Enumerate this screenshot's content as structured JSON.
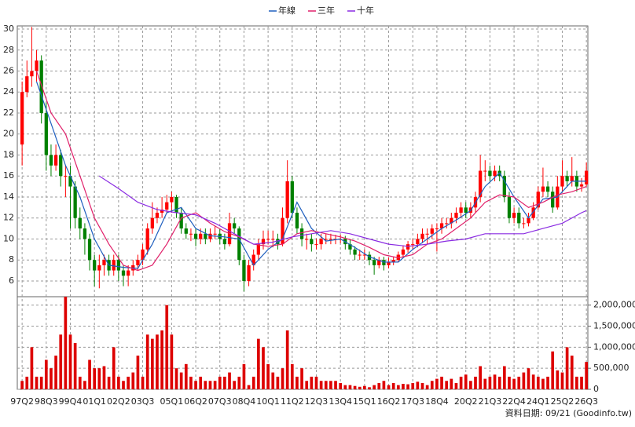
{
  "chart_data": [
    {
      "type": "candlestick",
      "xlim": [
        -1,
        117.3
      ],
      "xticks": [
        {
          "value": 0,
          "label": "97Q2"
        },
        {
          "value": 5,
          "label": "98Q3"
        },
        {
          "value": 10,
          "label": "99Q4"
        },
        {
          "value": 15,
          "label": "01Q1"
        },
        {
          "value": 20,
          "label": "02Q2"
        },
        {
          "value": 25,
          "label": "03Q3"
        },
        {
          "value": 31,
          "label": "05Q1"
        },
        {
          "value": 36,
          "label": "06Q2"
        },
        {
          "value": 41,
          "label": "07Q3"
        },
        {
          "value": 46,
          "label": "08Q4"
        },
        {
          "value": 51,
          "label": "10Q1"
        },
        {
          "value": 56,
          "label": "11Q2"
        },
        {
          "value": 61,
          "label": "12Q3"
        },
        {
          "value": 66,
          "label": "13Q4"
        },
        {
          "value": 71,
          "label": "15Q1"
        },
        {
          "value": 76,
          "label": "16Q2"
        },
        {
          "value": 81,
          "label": "17Q3"
        },
        {
          "value": 86,
          "label": "18Q4"
        },
        {
          "value": 92,
          "label": "20Q2"
        },
        {
          "value": 97,
          "label": "21Q3"
        },
        {
          "value": 102,
          "label": "22Q4"
        },
        {
          "value": 107,
          "label": "24Q1"
        },
        {
          "value": 112,
          "label": "25Q2"
        },
        {
          "value": 117,
          "label": "26Q3"
        }
      ],
      "ylim": [
        4.5,
        30.3
      ],
      "yticks": [
        6,
        8,
        10,
        12,
        14,
        16,
        18,
        20,
        22,
        24,
        26,
        28,
        30
      ],
      "grid": true,
      "up_color": "#ff0000",
      "down_color": "#008000",
      "open": [
        19,
        24,
        25.5,
        26,
        27,
        22,
        18,
        17,
        18,
        16,
        16,
        15,
        12,
        11,
        10,
        8,
        7,
        7.5,
        8,
        7,
        8,
        7,
        6.5,
        7,
        7.5,
        8,
        9,
        11,
        12,
        12.5,
        12.8,
        13.5,
        14,
        12.5,
        11,
        10.5,
        10.5,
        10,
        10.5,
        10,
        10.5,
        10.5,
        10,
        9.5,
        11.5,
        11,
        8,
        6,
        7.5,
        8.5,
        9.5,
        10,
        10,
        10,
        9.5,
        12,
        15.5,
        12.5,
        11,
        10,
        10,
        9.5,
        9.5,
        10,
        10,
        10,
        10,
        10,
        9.5,
        9,
        8.5,
        8.5,
        8.5,
        8,
        7.5,
        8,
        7.5,
        7.8,
        8,
        8.5,
        9,
        9.5,
        9.5,
        10,
        10.5,
        10.5,
        11,
        11,
        11.5,
        11.5,
        12,
        12.5,
        13,
        12.5,
        13,
        14,
        16.5,
        16.5,
        16,
        16.5,
        16,
        14,
        12,
        12.5,
        11.5,
        11.5,
        12,
        13,
        14.5,
        15,
        14.5,
        13,
        15,
        16,
        15.5,
        16,
        15,
        15.2
      ],
      "high": [
        25,
        27,
        30.2,
        28,
        27.5,
        23,
        19,
        19,
        18.5,
        17,
        17,
        15.5,
        13,
        11.5,
        10.5,
        8.5,
        8.5,
        8.5,
        8.5,
        8.5,
        8.5,
        7.5,
        7.5,
        8,
        8.5,
        9.5,
        11.5,
        13.5,
        13,
        14,
        14.2,
        14.5,
        14.2,
        13,
        11.5,
        11,
        11,
        11,
        11,
        11,
        11.2,
        11,
        10.5,
        12.5,
        12,
        11.2,
        8.5,
        8,
        9,
        10,
        10.8,
        10.8,
        10.8,
        10.5,
        13,
        17.5,
        16,
        13,
        11.5,
        10.5,
        10.5,
        10,
        10.5,
        10.5,
        10.5,
        10.4,
        10.4,
        10.3,
        10,
        9.3,
        9,
        9,
        8.8,
        8.3,
        8.3,
        8.3,
        8.2,
        8.3,
        8.8,
        9.4,
        9.8,
        10,
        10.5,
        11,
        11,
        11.4,
        11.5,
        12,
        12,
        12.5,
        13,
        13.5,
        13.5,
        13.5,
        14.5,
        18,
        17.5,
        17,
        17,
        17,
        16.5,
        14.5,
        13,
        13,
        12,
        12.5,
        13.5,
        15,
        16.8,
        15.5,
        15,
        16,
        17.5,
        16.5,
        17.8,
        16.5,
        15.8,
        17.3
      ],
      "low": [
        17,
        23.5,
        24.5,
        25,
        21,
        16.5,
        16,
        16.5,
        15,
        14,
        11,
        11,
        10,
        8.5,
        7,
        5.5,
        5.3,
        6.5,
        6.5,
        6.5,
        6,
        5.5,
        5.5,
        6.5,
        7,
        7.5,
        8.5,
        10.5,
        11.5,
        12,
        12.5,
        12.5,
        12,
        10.5,
        10,
        9.8,
        9.3,
        9.5,
        9.5,
        9.7,
        10,
        9.5,
        9,
        9.3,
        10.5,
        7.5,
        5,
        5.5,
        7,
        8,
        9,
        9.5,
        9.2,
        9,
        9.3,
        11.5,
        12,
        10.5,
        9.3,
        9,
        8.8,
        9,
        9,
        9.5,
        9.5,
        9.5,
        9.6,
        9,
        8.5,
        8,
        8,
        8,
        7.5,
        6.6,
        7.2,
        7,
        7.2,
        7.5,
        7.8,
        8.2,
        8.7,
        9,
        9.2,
        9.6,
        9.5,
        10,
        8.8,
        10.5,
        11,
        11,
        11.5,
        12,
        12,
        12,
        12.5,
        13.5,
        15.5,
        15.5,
        15.5,
        15.5,
        13.5,
        11.5,
        11.5,
        11,
        11,
        11.2,
        11.8,
        12.8,
        14,
        14,
        12.5,
        12.8,
        14.5,
        15,
        15,
        14.5,
        14.5,
        15
      ],
      "close": [
        24,
        25.5,
        26,
        27,
        22,
        18,
        17,
        18,
        16,
        16,
        15,
        12,
        11,
        10,
        8,
        7,
        7.5,
        8,
        7,
        8,
        7,
        6.5,
        7,
        7.5,
        8,
        9,
        11,
        12,
        12.5,
        12.8,
        13.5,
        14,
        12.5,
        11,
        10.5,
        10.5,
        10,
        10.5,
        10,
        10.5,
        10.5,
        10,
        9.5,
        11.5,
        11,
        8,
        6,
        7.5,
        8.5,
        9.5,
        10,
        10,
        10,
        9.5,
        12,
        15.5,
        12.5,
        11,
        10,
        10,
        9.5,
        9.5,
        10,
        10,
        10,
        10,
        10,
        9.5,
        9,
        8.5,
        8.5,
        8.5,
        8,
        7.5,
        8,
        7.5,
        7.8,
        8,
        8.5,
        9,
        9.5,
        9.5,
        10,
        10.5,
        10.5,
        11,
        11,
        11.5,
        11.5,
        12,
        12.5,
        13,
        12.5,
        13,
        14,
        16.5,
        16.5,
        16,
        16.5,
        16,
        14,
        12,
        12.5,
        11.5,
        11.5,
        12,
        13,
        14.5,
        15,
        14.5,
        13,
        15,
        16,
        15.5,
        16,
        15,
        15.2,
        16.5
      ],
      "series": [
        {
          "name": "年線",
          "color": "#1f5fbf",
          "x": [
            3,
            6,
            9,
            12,
            15,
            18,
            21,
            24,
            27,
            30,
            33,
            36,
            39,
            42,
            45,
            48,
            51,
            54,
            57,
            60,
            63,
            66,
            69,
            72,
            75,
            78,
            81,
            84,
            87,
            90,
            93,
            96,
            99,
            102,
            105,
            108,
            111,
            114,
            117
          ],
          "values": [
            25,
            21,
            17,
            14,
            10,
            7.5,
            7.3,
            7.2,
            9.5,
            12.5,
            13,
            11,
            10.3,
            10.2,
            10,
            7.5,
            9,
            10,
            13.5,
            11,
            9.8,
            10,
            9.2,
            8.3,
            7.8,
            7.8,
            9,
            10,
            11,
            11.8,
            12.7,
            15,
            16.3,
            14,
            12,
            13.8,
            14,
            15.5,
            15.5
          ]
        },
        {
          "name": "三年",
          "color": "#e0206a",
          "x": [
            3,
            6,
            9,
            12,
            15,
            18,
            21,
            24,
            27,
            30,
            33,
            36,
            39,
            42,
            45,
            48,
            51,
            54,
            57,
            60,
            63,
            66,
            69,
            72,
            75,
            78,
            81,
            84,
            87,
            90,
            93,
            96,
            99,
            102,
            105,
            108,
            111,
            114,
            117
          ],
          "values": [
            26,
            22,
            20,
            16,
            12,
            9.5,
            7.5,
            7,
            7.5,
            9.5,
            12,
            12.5,
            11.5,
            10.7,
            10.2,
            9.5,
            9.3,
            9.5,
            10.5,
            10.8,
            10.5,
            10.2,
            9.8,
            9.2,
            8.5,
            8.2,
            8.5,
            9.5,
            10,
            11,
            12,
            13.5,
            14.2,
            14,
            13,
            13.5,
            14.2,
            14.5,
            15
          ]
        },
        {
          "name": "十年",
          "color": "#8a2be2",
          "x": [
            16,
            20,
            24,
            28,
            32,
            36,
            40,
            44,
            48,
            52,
            56,
            60,
            64,
            68,
            72,
            76,
            80,
            84,
            88,
            92,
            96,
            100,
            104,
            108,
            112,
            116,
            117
          ],
          "values": [
            16,
            14.8,
            13.5,
            12.8,
            12.5,
            12.3,
            11.5,
            10.5,
            9.5,
            9.7,
            10.2,
            10.5,
            10.8,
            10.5,
            10,
            9.5,
            9.3,
            9.5,
            9.8,
            10,
            10.5,
            10.5,
            10.5,
            11,
            11.5,
            12.5,
            12.7
          ]
        }
      ]
    },
    {
      "type": "bar",
      "color": "#dd0000",
      "ylim": [
        0,
        2200000
      ],
      "yticks": [
        0,
        {
          "value": 500000,
          "label": "500,000"
        },
        {
          "value": 1000000,
          "label": "1,000,000"
        },
        {
          "value": 1500000,
          "label": "1,500,000"
        },
        {
          "value": 2000000,
          "label": "2,000,000"
        }
      ],
      "values": [
        200000,
        300000,
        1000000,
        300000,
        300000,
        700000,
        500000,
        800000,
        1300000,
        2200000,
        1300000,
        1100000,
        300000,
        200000,
        700000,
        500000,
        500000,
        550000,
        300000,
        1000000,
        300000,
        200000,
        300000,
        400000,
        800000,
        300000,
        1300000,
        1200000,
        1300000,
        1400000,
        2000000,
        1300000,
        500000,
        400000,
        600000,
        300000,
        200000,
        300000,
        200000,
        200000,
        200000,
        300000,
        300000,
        400000,
        200000,
        300000,
        600000,
        100000,
        300000,
        1200000,
        1000000,
        600000,
        400000,
        300000,
        500000,
        1400000,
        600000,
        300000,
        500000,
        200000,
        300000,
        300000,
        200000,
        200000,
        200000,
        200000,
        150000,
        100000,
        100000,
        80000,
        60000,
        80000,
        50000,
        100000,
        150000,
        200000,
        100000,
        150000,
        100000,
        130000,
        120000,
        150000,
        180000,
        150000,
        100000,
        200000,
        250000,
        300000,
        200000,
        250000,
        150000,
        300000,
        350000,
        200000,
        300000,
        550000,
        250000,
        300000,
        350000,
        300000,
        550000,
        300000,
        250000,
        300000,
        400000,
        500000,
        350000,
        300000,
        250000,
        300000,
        900000,
        450000,
        400000,
        1000000,
        800000,
        300000,
        300000,
        650000
      ]
    }
  ],
  "footer": "資料日期: 09/21 (Goodinfo.tw)"
}
